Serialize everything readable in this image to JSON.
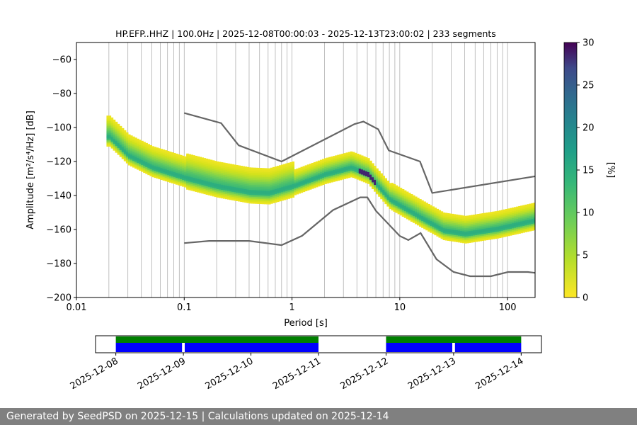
{
  "chart_data": {
    "type": "heatmap",
    "title": "HP.EFP..HHZ | 100.0Hz | 2025-12-08T00:00:03 - 2025-12-13T23:00:02 | 233 segments",
    "xlabel": "Period [s]",
    "ylabel": "Amplitude [m²/s⁴/Hz] [dB]",
    "x_scale": "log",
    "xlim": [
      0.01,
      180
    ],
    "ylim": [
      -200,
      -50
    ],
    "x_ticks": [
      0.01,
      0.1,
      1,
      10,
      100
    ],
    "x_tick_labels": [
      "0.01",
      "0.1",
      "1",
      "10",
      "100"
    ],
    "y_ticks": [
      -200,
      -180,
      -160,
      -140,
      -120,
      -100,
      -80,
      -60
    ],
    "y_tick_labels": [
      "−200",
      "−180",
      "−160",
      "−140",
      "−120",
      "−100",
      "−80",
      "−60"
    ],
    "grid": "x-minor-and-major",
    "colorbar": {
      "label": "[%]",
      "range": [
        0,
        30
      ],
      "ticks": [
        0,
        5,
        10,
        15,
        20,
        25,
        30
      ],
      "tick_labels": [
        "0",
        "5",
        "10",
        "15",
        "20",
        "25",
        "30"
      ],
      "colormap": "viridis"
    },
    "noise_models": [
      {
        "name": "NHNM",
        "points": [
          [
            0.1,
            -91.5
          ],
          [
            0.22,
            -97.4
          ],
          [
            0.32,
            -110.5
          ],
          [
            0.8,
            -120
          ],
          [
            3.8,
            -98
          ],
          [
            4.6,
            -96.5
          ],
          [
            6.3,
            -101
          ],
          [
            7.9,
            -113.5
          ],
          [
            15.4,
            -120
          ],
          [
            20,
            -138.5
          ],
          [
            180,
            -128.7
          ]
        ]
      },
      {
        "name": "NLNM",
        "points": [
          [
            0.1,
            -168
          ],
          [
            0.17,
            -166.7
          ],
          [
            0.4,
            -166.7
          ],
          [
            0.8,
            -169.2
          ],
          [
            1.24,
            -163.7
          ],
          [
            2.4,
            -148.6
          ],
          [
            4.3,
            -141.1
          ],
          [
            5,
            -141.1
          ],
          [
            6,
            -149
          ],
          [
            10,
            -163.8
          ],
          [
            12,
            -166.2
          ],
          [
            15.6,
            -162.1
          ],
          [
            21.9,
            -177.5
          ],
          [
            31.6,
            -185
          ],
          [
            45,
            -187.5
          ],
          [
            70,
            -187.5
          ],
          [
            101,
            -185
          ],
          [
            154,
            -185
          ],
          [
            180,
            -185.5
          ]
        ]
      }
    ],
    "density_ridge": {
      "description": "mode of PPSD distribution (dB) vs period (s)",
      "points": [
        [
          0.02,
          -106
        ],
        [
          0.03,
          -117
        ],
        [
          0.05,
          -124
        ],
        [
          0.1,
          -130
        ],
        [
          0.2,
          -135
        ],
        [
          0.4,
          -138.5
        ],
        [
          0.6,
          -139
        ],
        [
          1,
          -135
        ],
        [
          2,
          -128
        ],
        [
          3.5,
          -124
        ],
        [
          5,
          -128
        ],
        [
          6,
          -134
        ],
        [
          8,
          -143
        ],
        [
          15,
          -153
        ],
        [
          25,
          -161
        ],
        [
          40,
          -163
        ],
        [
          80,
          -160
        ],
        [
          180,
          -155
        ]
      ]
    },
    "coverage": {
      "date_labels": [
        "2025-12-08",
        "2025-12-09",
        "2025-12-10",
        "2025-12-11",
        "2025-12-12",
        "2025-12-13",
        "2025-12-14"
      ],
      "time_range_days": [
        -0.3,
        6.3
      ],
      "green_intervals": [
        [
          0,
          3
        ],
        [
          4,
          6
        ]
      ],
      "blue_intervals": [
        [
          0,
          0.98
        ],
        [
          1.02,
          3
        ],
        [
          4,
          4.98
        ],
        [
          5.02,
          6
        ]
      ]
    }
  },
  "footer": "Generated by SeedPSD on 2025-12-15 | Calculations updated on 2025-12-14"
}
